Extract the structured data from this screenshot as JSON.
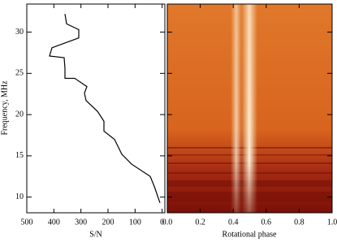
{
  "chart_data": [
    {
      "type": "line",
      "xlabel": "S/N",
      "ylabel": "Frequency, MHz",
      "x": [
        359,
        353,
        308,
        308,
        407,
        416,
        362,
        359,
        359,
        323,
        278,
        287,
        281,
        239,
        215,
        215,
        176,
        149,
        113,
        44,
        29,
        8
      ],
      "series": [
        {
          "color": "#000000",
          "values": [
            32.2,
            31.0,
            30.3,
            29.3,
            28.1,
            27.1,
            26.9,
            25.6,
            24.4,
            24.4,
            23.4,
            22.6,
            21.7,
            20.4,
            19.2,
            18.0,
            17.0,
            15.2,
            14.0,
            12.5,
            11.3,
            9.3
          ]
        }
      ],
      "xlim": [
        500,
        -10
      ],
      "xticks": [
        500,
        400,
        300,
        200,
        100,
        0
      ],
      "ylim": [
        8.1,
        33.4
      ],
      "yticks": [
        10,
        15,
        20,
        25,
        30
      ]
    },
    {
      "type": "image",
      "xlabel": "Rotational phase",
      "xlim": [
        0,
        1
      ],
      "xticks": [
        {
          "value": 0,
          "label": "0.0"
        },
        {
          "value": 0.2,
          "label": "0.2"
        },
        {
          "value": 0.4,
          "label": "0.4"
        },
        {
          "value": 0.6,
          "label": "0.6"
        },
        {
          "value": 0.8,
          "label": "0.8"
        },
        {
          "value": 1,
          "label": "1.0"
        }
      ],
      "ylim": [
        8.1,
        33.4
      ],
      "yticks": [
        10,
        15,
        20,
        25,
        30
      ]
    }
  ]
}
